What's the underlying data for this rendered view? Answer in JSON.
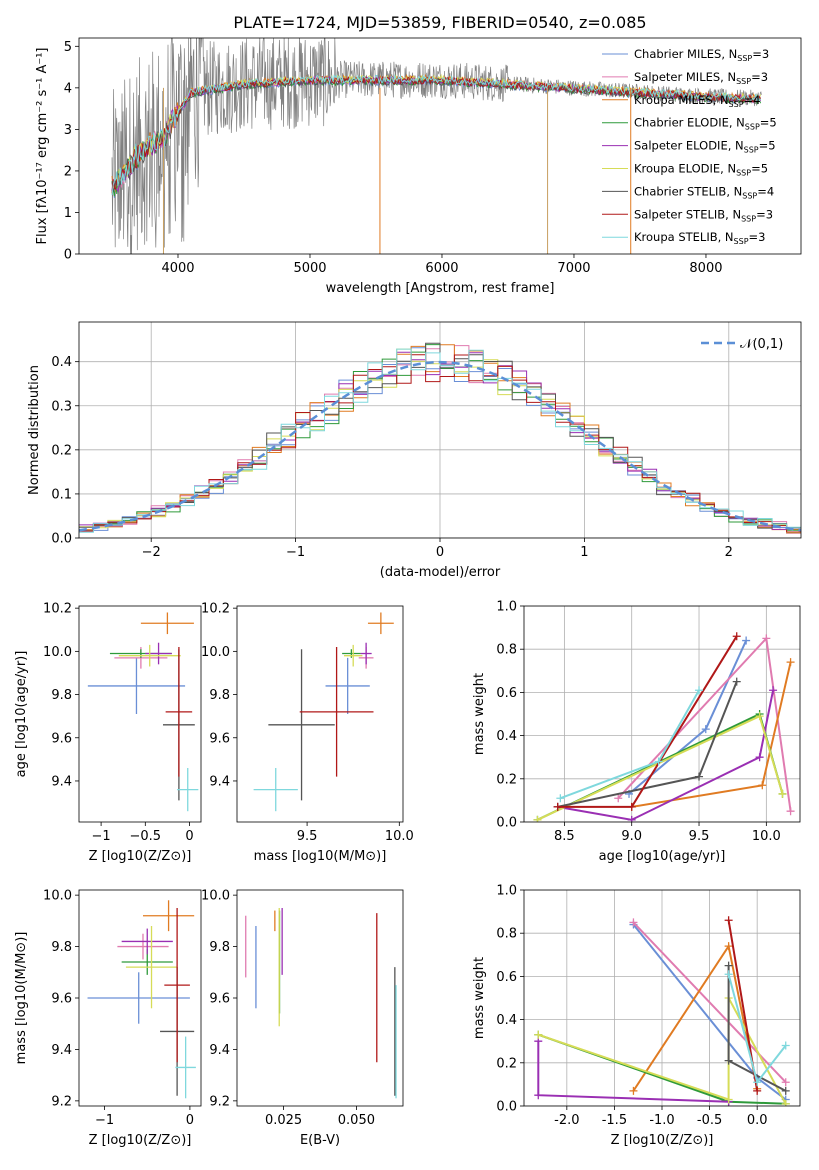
{
  "figure": {
    "title": "PLATE=1724, MJD=53859, FIBERID=0540, z=0.085"
  },
  "colors": {
    "Chabrier MILES": "#6a8fd6",
    "Salpeter MILES": "#e07bb0",
    "Kroupa MILES": "#e07b22",
    "Chabrier ELODIE": "#2e9a3a",
    "Salpeter ELODIE": "#9a2fb3",
    "Kroupa ELODIE": "#d6dc57",
    "Chabrier STELIB": "#555555",
    "Salpeter STELIB": "#b01818",
    "Kroupa STELIB": "#7fd8dd"
  },
  "chart_data": [
    {
      "id": "spectrum",
      "type": "line",
      "title": "PLATE=1724, MJD=53859, FIBERID=0540, z=0.085",
      "xlabel": "wavelength [Angstrom, rest frame]",
      "ylabel": "Flux [fλ10⁻¹⁷ erg cm⁻² s⁻¹ A⁻¹]",
      "xlim": [
        3250,
        8720
      ],
      "ylim": [
        0,
        5.2
      ],
      "grid": false,
      "legend": "right",
      "xticks": [
        4000,
        5000,
        6000,
        7000,
        8000
      ],
      "yticks": [
        0,
        1,
        2,
        3,
        4,
        5
      ],
      "data_envelope": {
        "x": [
          3500,
          3700,
          3900,
          4100,
          4300,
          4500,
          5000,
          5500,
          6000,
          6500,
          7000,
          7500,
          8000,
          8400
        ],
        "y": [
          1.6,
          2.4,
          2.9,
          3.9,
          4.0,
          4.1,
          4.2,
          4.2,
          4.2,
          4.1,
          4.0,
          3.9,
          3.8,
          3.75
        ]
      },
      "series": [
        {
          "name": "Chabrier MILES, N_SSP=3"
        },
        {
          "name": "Salpeter MILES, N_SSP=3"
        },
        {
          "name": "Kroupa MILES, N_SSP=4"
        },
        {
          "name": "Chabrier ELODIE, N_SSP=5"
        },
        {
          "name": "Salpeter ELODIE, N_SSP=5"
        },
        {
          "name": "Kroupa ELODIE, N_SSP=5"
        },
        {
          "name": "Chabrier STELIB, N_SSP=4"
        },
        {
          "name": "Salpeter STELIB, N_SSP=3"
        },
        {
          "name": "Kroupa STELIB, N_SSP=3"
        }
      ]
    },
    {
      "id": "residuals",
      "type": "line",
      "xlabel": "(data-model)/error",
      "ylabel": "Normed distribution",
      "xlim": [
        -2.5,
        2.5
      ],
      "ylim": [
        0,
        0.49
      ],
      "grid": true,
      "legend": "top-right",
      "xticks": [
        -2,
        -1,
        0,
        1,
        2
      ],
      "yticks": [
        0.0,
        0.1,
        0.2,
        0.3,
        0.4
      ],
      "reference": {
        "name": "𝒩(0,1)",
        "style": "dashed"
      }
    },
    {
      "id": "age_vs_Z",
      "type": "errorbar",
      "xlabel": "Z [log10(Z/Z⊙)]",
      "ylabel": "age [log10(age/yr)]",
      "xlim": [
        -1.25,
        0.13
      ],
      "ylim": [
        9.21,
        10.21
      ],
      "xticks": [
        -1,
        -0.5,
        0
      ],
      "yticks": [
        9.4,
        9.6,
        9.8,
        10.0,
        10.2
      ],
      "points": [
        {
          "model": "Chabrier MILES",
          "x": -0.6,
          "xerr": 0.55,
          "y": 9.84,
          "yerr": 0.13
        },
        {
          "model": "Salpeter MILES",
          "x": -0.55,
          "xerr": 0.3,
          "y": 9.97,
          "yerr": 0.05
        },
        {
          "model": "Kroupa MILES",
          "x": -0.25,
          "xerr": 0.3,
          "y": 10.13,
          "yerr": 0.05
        },
        {
          "model": "Chabrier ELODIE",
          "x": -0.55,
          "xerr": 0.35,
          "y": 9.99,
          "yerr": 0.02
        },
        {
          "model": "Salpeter ELODIE",
          "x": -0.35,
          "xerr": 0.15,
          "y": 9.99,
          "yerr": 0.05
        },
        {
          "model": "Kroupa ELODIE",
          "x": -0.45,
          "xerr": 0.35,
          "y": 9.98,
          "yerr": 0.05
        },
        {
          "model": "Chabrier STELIB",
          "x": -0.12,
          "xerr": 0.18,
          "y": 9.66,
          "yerr": 0.35
        },
        {
          "model": "Salpeter STELIB",
          "x": -0.12,
          "xerr": 0.15,
          "y": 9.72,
          "yerr": 0.3
        },
        {
          "model": "Kroupa STELIB",
          "x": -0.02,
          "xerr": 0.12,
          "y": 9.36,
          "yerr": 0.1
        }
      ]
    },
    {
      "id": "age_vs_mass",
      "type": "errorbar",
      "xlabel": "mass [log10(M/M⊙)]",
      "ylabel": "",
      "xlim": [
        9.12,
        10.02
      ],
      "ylim": [
        9.21,
        10.21
      ],
      "xticks": [
        9.5,
        10.0
      ],
      "yticks": [
        9.4,
        9.6,
        9.8,
        10.0,
        10.2
      ],
      "points": [
        {
          "model": "Chabrier MILES",
          "x": 9.72,
          "xerr": 0.12,
          "y": 9.84,
          "yerr": 0.13
        },
        {
          "model": "Salpeter MILES",
          "x": 9.82,
          "xerr": 0.04,
          "y": 9.97,
          "yerr": 0.05
        },
        {
          "model": "Kroupa MILES",
          "x": 9.9,
          "xerr": 0.07,
          "y": 10.13,
          "yerr": 0.05
        },
        {
          "model": "Chabrier ELODIE",
          "x": 9.74,
          "xerr": 0.05,
          "y": 9.99,
          "yerr": 0.02
        },
        {
          "model": "Salpeter ELODIE",
          "x": 9.82,
          "xerr": 0.03,
          "y": 9.99,
          "yerr": 0.05
        },
        {
          "model": "Kroupa ELODIE",
          "x": 9.75,
          "xerr": 0.05,
          "y": 9.98,
          "yerr": 0.05
        },
        {
          "model": "Chabrier STELIB",
          "x": 9.47,
          "xerr": 0.18,
          "y": 9.66,
          "yerr": 0.35
        },
        {
          "model": "Salpeter STELIB",
          "x": 9.66,
          "xerr": 0.2,
          "y": 9.72,
          "yerr": 0.3
        },
        {
          "model": "Kroupa STELIB",
          "x": 9.33,
          "xerr": 0.12,
          "y": 9.36,
          "yerr": 0.1
        }
      ]
    },
    {
      "id": "weight_vs_age",
      "type": "line",
      "xlabel": "age [log10(age/yr)]",
      "ylabel": "mass weight",
      "xlim": [
        8.2,
        10.25
      ],
      "ylim": [
        0,
        1
      ],
      "grid": true,
      "xticks": [
        8.5,
        9.0,
        9.5,
        10.0
      ],
      "yticks": [
        0.0,
        0.2,
        0.4,
        0.6,
        0.8,
        1.0
      ],
      "series": [
        {
          "model": "Chabrier MILES",
          "x": [
            8.98,
            9.55,
            9.85
          ],
          "y": [
            0.13,
            0.43,
            0.84
          ]
        },
        {
          "model": "Salpeter MILES",
          "x": [
            8.9,
            10.0,
            10.18
          ],
          "y": [
            0.11,
            0.85,
            0.05
          ]
        },
        {
          "model": "Kroupa MILES",
          "x": [
            9.0,
            9.97,
            10.18
          ],
          "y": [
            0.07,
            0.17,
            0.74
          ]
        },
        {
          "model": "Chabrier ELODIE",
          "x": [
            8.3,
            9.95,
            10.12
          ],
          "y": [
            0.01,
            0.5,
            0.13
          ]
        },
        {
          "model": "Salpeter ELODIE",
          "x": [
            8.45,
            9.0,
            9.95,
            10.05
          ],
          "y": [
            0.07,
            0.01,
            0.3,
            0.61
          ]
        },
        {
          "model": "Kroupa ELODIE",
          "x": [
            8.3,
            9.95,
            10.12
          ],
          "y": [
            0.01,
            0.49,
            0.13
          ]
        },
        {
          "model": "Chabrier STELIB",
          "x": [
            8.45,
            9.5,
            9.78
          ],
          "y": [
            0.07,
            0.21,
            0.65
          ]
        },
        {
          "model": "Salpeter STELIB",
          "x": [
            8.45,
            9.0,
            9.78
          ],
          "y": [
            0.07,
            0.07,
            0.86
          ]
        },
        {
          "model": "Kroupa STELIB",
          "x": [
            8.47,
            9.2,
            9.5
          ],
          "y": [
            0.11,
            0.28,
            0.61
          ]
        }
      ]
    },
    {
      "id": "mass_vs_Z",
      "type": "errorbar",
      "xlabel": "Z [log10(Z/Z⊙)]",
      "ylabel": "mass [log10(M/M⊙)]",
      "xlim": [
        -1.3,
        0.13
      ],
      "ylim": [
        9.18,
        10.02
      ],
      "xticks": [
        -1,
        0
      ],
      "yticks": [
        9.2,
        9.4,
        9.6,
        9.8,
        10.0
      ],
      "points": [
        {
          "model": "Chabrier MILES",
          "x": -0.6,
          "xerr": 0.6,
          "y": 9.6,
          "yerr": 0.1
        },
        {
          "model": "Salpeter MILES",
          "x": -0.55,
          "xerr": 0.3,
          "y": 9.8,
          "yerr": 0.05
        },
        {
          "model": "Kroupa MILES",
          "x": -0.25,
          "xerr": 0.3,
          "y": 9.92,
          "yerr": 0.06
        },
        {
          "model": "Chabrier ELODIE",
          "x": -0.5,
          "xerr": 0.3,
          "y": 9.74,
          "yerr": 0.05
        },
        {
          "model": "Salpeter ELODIE",
          "x": -0.5,
          "xerr": 0.3,
          "y": 9.82,
          "yerr": 0.05
        },
        {
          "model": "Kroupa ELODIE",
          "x": -0.45,
          "xerr": 0.3,
          "y": 9.72,
          "yerr": 0.16
        },
        {
          "model": "Chabrier STELIB",
          "x": -0.15,
          "xerr": 0.2,
          "y": 9.47,
          "yerr": 0.25
        },
        {
          "model": "Salpeter STELIB",
          "x": -0.15,
          "xerr": 0.15,
          "y": 9.65,
          "yerr": 0.3
        },
        {
          "model": "Kroupa STELIB",
          "x": -0.05,
          "xerr": 0.12,
          "y": 9.33,
          "yerr": 0.12
        }
      ]
    },
    {
      "id": "mass_vs_EBV",
      "type": "errorbar",
      "xlabel": "E(B-V)",
      "ylabel": "",
      "xlim": [
        0.009,
        0.066
      ],
      "ylim": [
        9.18,
        10.02
      ],
      "xticks": [
        0.025,
        0.05
      ],
      "yticks": [
        9.2,
        9.4,
        9.6,
        9.8,
        10.0
      ],
      "points": [
        {
          "model": "Chabrier MILES",
          "x": 0.0155,
          "y": 9.72,
          "yerr": 0.16
        },
        {
          "model": "Salpeter MILES",
          "x": 0.012,
          "y": 9.8,
          "yerr": 0.12
        },
        {
          "model": "Kroupa MILES",
          "x": 0.022,
          "y": 9.9,
          "yerr": 0.04
        },
        {
          "model": "Chabrier ELODIE",
          "x": 0.0236,
          "y": 9.74,
          "yerr": 0.2
        },
        {
          "model": "Salpeter ELODIE",
          "x": 0.0245,
          "y": 9.82,
          "yerr": 0.13
        },
        {
          "model": "Kroupa ELODIE",
          "x": 0.0235,
          "y": 9.72,
          "yerr": 0.23
        },
        {
          "model": "Chabrier STELIB",
          "x": 0.0632,
          "y": 9.47,
          "yerr": 0.25
        },
        {
          "model": "Salpeter STELIB",
          "x": 0.057,
          "y": 9.64,
          "yerr": 0.29
        },
        {
          "model": "Kroupa STELIB",
          "x": 0.0636,
          "y": 9.43,
          "yerr": 0.22
        }
      ]
    },
    {
      "id": "weight_vs_Z",
      "type": "line",
      "xlabel": "Z [log10(Z/Z⊙)]",
      "ylabel": "mass weight",
      "xlim": [
        -2.45,
        0.45
      ],
      "ylim": [
        0,
        1
      ],
      "grid": true,
      "xticks": [
        -2.0,
        -1.5,
        -1.0,
        -0.5,
        0.0
      ],
      "yticks": [
        0.0,
        0.2,
        0.4,
        0.6,
        0.8,
        1.0
      ],
      "series": [
        {
          "model": "Chabrier MILES",
          "x": [
            -1.3,
            -0.0,
            0.3
          ],
          "y": [
            0.84,
            0.13,
            0.03
          ]
        },
        {
          "model": "Salpeter MILES",
          "x": [
            -1.3,
            0.3
          ],
          "y": [
            0.85,
            0.11
          ]
        },
        {
          "model": "Kroupa MILES",
          "x": [
            -1.3,
            -0.3,
            0.0
          ],
          "y": [
            0.07,
            0.74,
            0.08
          ]
        },
        {
          "model": "Chabrier ELODIE",
          "x": [
            -2.3,
            -0.3,
            0.3
          ],
          "y": [
            0.33,
            0.02,
            0.01
          ]
        },
        {
          "model": "Salpeter ELODIE",
          "x": [
            -2.3,
            -2.3,
            -0.3
          ],
          "y": [
            0.3,
            0.05,
            0.02
          ]
        },
        {
          "model": "Kroupa ELODIE",
          "x": [
            -2.3,
            -0.3,
            -0.3,
            0.3
          ],
          "y": [
            0.33,
            0.03,
            0.5,
            0.01
          ]
        },
        {
          "model": "Chabrier STELIB",
          "x": [
            -0.3,
            -0.3,
            0.3
          ],
          "y": [
            0.65,
            0.21,
            0.07
          ]
        },
        {
          "model": "Salpeter STELIB",
          "x": [
            -0.3,
            0.0
          ],
          "y": [
            0.86,
            0.07
          ]
        },
        {
          "model": "Kroupa STELIB",
          "x": [
            -0.3,
            0.0,
            0.3
          ],
          "y": [
            0.61,
            0.11,
            0.28
          ]
        }
      ]
    }
  ]
}
